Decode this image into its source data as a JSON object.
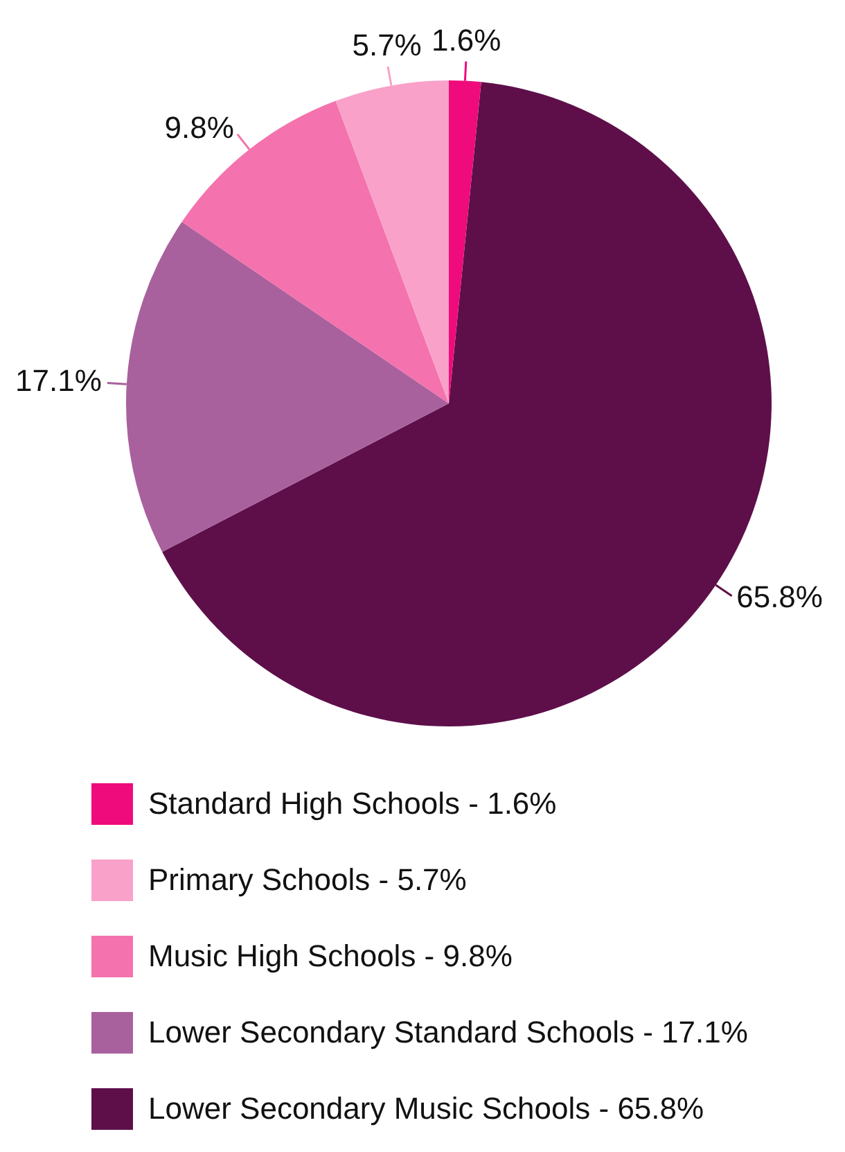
{
  "chart_data": {
    "type": "pie",
    "categories": [
      "Lower Secondary Music Schools - 65.8%",
      "Lower Secondary Standard Schools - 17.1%",
      "Music High Schools - 9.8%",
      "Primary Schools - 5.7%",
      "Standard High Schools - 1.6%"
    ],
    "values": [
      65.8,
      17.1,
      9.8,
      5.7,
      1.6
    ],
    "colors": [
      "#5e0f4a",
      "#a9619d",
      "#f472ad",
      "#f9a1c9",
      "#ef0b7b"
    ],
    "value_labels": [
      "65.8%",
      "17.1%",
      "9.8%",
      "5.7%",
      "1.6%"
    ],
    "legend": "bottom"
  }
}
